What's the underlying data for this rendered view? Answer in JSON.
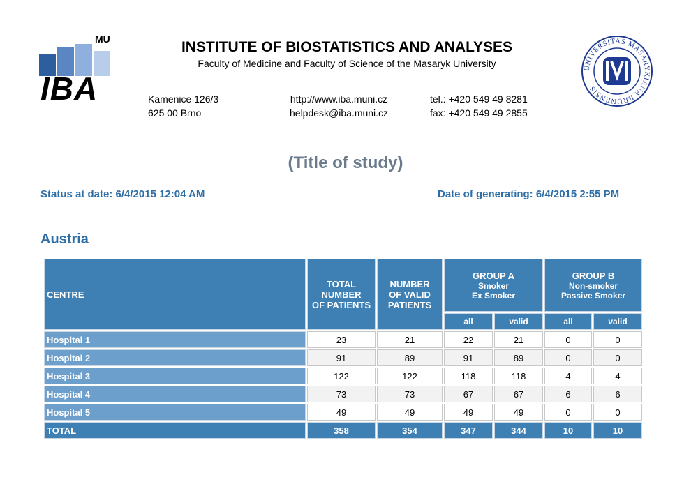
{
  "logo": {
    "mu": "MU",
    "iba": "IBA",
    "bar_colors": [
      "#2d5f9e",
      "#5b86c4",
      "#8fb0de",
      "#b7cdea"
    ]
  },
  "header": {
    "title": "INSTITUTE OF BIOSTATISTICS AND ANALYSES",
    "subtitle": "Faculty of Medicine and Faculty of Science of the Masaryk University",
    "address_line1": "Kamenice 126/3",
    "address_line2": "625 00 Brno",
    "web": "http://www.iba.muni.cz",
    "email": "helpdesk@iba.muni.cz",
    "tel": "tel.: +420 549 49 8281",
    "fax": "fax: +420 549 49 2855"
  },
  "seal": {
    "ring_text": "UNIVERSITAS MASARYKIANA BRUNENSIS",
    "accent_color": "#1f3a93"
  },
  "study_title": "(Title of study)",
  "status_date": "Status at date: 6/4/2015 12:04 AM",
  "generated_date": "Date of generating: 6/4/2015 2:55 PM",
  "country": "Austria",
  "table": {
    "col_centre": "CENTRE",
    "col_total": [
      "TOTAL",
      "NUMBER",
      "OF PATIENTS"
    ],
    "col_valid": [
      "NUMBER",
      "OF VALID",
      "PATIENTS"
    ],
    "group_a": {
      "name": "GROUP A",
      "line1": "Smoker",
      "line2": "Ex Smoker"
    },
    "group_b": {
      "name": "GROUP B",
      "line1": "Non-smoker",
      "line2": "Passive Smoker"
    },
    "sub_all": "all",
    "sub_valid": "valid",
    "rows": [
      {
        "centre": "Hospital 1",
        "total": "23",
        "valid": "21",
        "a_all": "22",
        "a_valid": "21",
        "b_all": "0",
        "b_valid": "0"
      },
      {
        "centre": "Hospital 2",
        "total": "91",
        "valid": "89",
        "a_all": "91",
        "a_valid": "89",
        "b_all": "0",
        "b_valid": "0"
      },
      {
        "centre": "Hospital 3",
        "total": "122",
        "valid": "122",
        "a_all": "118",
        "a_valid": "118",
        "b_all": "4",
        "b_valid": "4"
      },
      {
        "centre": "Hospital 4",
        "total": "73",
        "valid": "73",
        "a_all": "67",
        "a_valid": "67",
        "b_all": "6",
        "b_valid": "6"
      },
      {
        "centre": "Hospital 5",
        "total": "49",
        "valid": "49",
        "a_all": "49",
        "a_valid": "49",
        "b_all": "0",
        "b_valid": "0"
      }
    ],
    "total_row": {
      "centre": "TOTAL",
      "total": "358",
      "valid": "354",
      "a_all": "347",
      "a_valid": "344",
      "b_all": "10",
      "b_valid": "10"
    }
  }
}
